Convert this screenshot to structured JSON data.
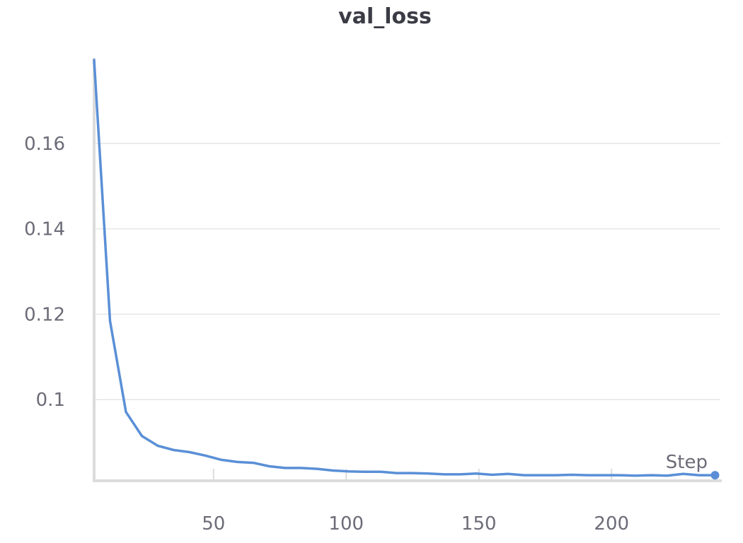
{
  "chart_data": {
    "type": "line",
    "title": "val_loss",
    "xlabel": "Step",
    "ylabel": "",
    "xlim": [
      5,
      241
    ],
    "ylim": [
      0.081,
      0.1795
    ],
    "x_ticks": [
      50,
      100,
      150,
      200
    ],
    "x_tick_labels": [
      "50",
      "100",
      "150",
      "200"
    ],
    "y_ticks": [
      0.1,
      0.12,
      0.14,
      0.16
    ],
    "y_tick_labels": [
      "0.1",
      "0.12",
      "0.14",
      "0.16"
    ],
    "grid": true,
    "legend": "none",
    "colors": {
      "line": "#5a8fd6",
      "grid": "#e6e6e6",
      "axis": "#dcdcdc",
      "text": "#6c6c78",
      "title": "#3b3b45"
    },
    "series": [
      {
        "x": [
          5,
          11,
          17,
          23,
          29,
          35,
          41,
          47,
          53,
          59,
          65,
          71,
          77,
          83,
          89,
          95,
          101,
          107,
          113,
          119,
          125,
          131,
          137,
          143,
          149,
          155,
          161,
          167,
          173,
          179,
          185,
          191,
          197,
          203,
          209,
          215,
          221,
          227,
          233,
          239
        ],
        "values": [
          0.1795,
          0.1184,
          0.0971,
          0.0915,
          0.0892,
          0.0882,
          0.0877,
          0.0869,
          0.0859,
          0.0854,
          0.0852,
          0.0844,
          0.084,
          0.084,
          0.0838,
          0.0834,
          0.0832,
          0.0831,
          0.0831,
          0.0828,
          0.0828,
          0.0827,
          0.0825,
          0.0825,
          0.0827,
          0.0824,
          0.0826,
          0.0823,
          0.0823,
          0.0823,
          0.0824,
          0.0823,
          0.0823,
          0.0823,
          0.0822,
          0.0823,
          0.0822,
          0.0826,
          0.0823,
          0.0823
        ]
      }
    ]
  }
}
